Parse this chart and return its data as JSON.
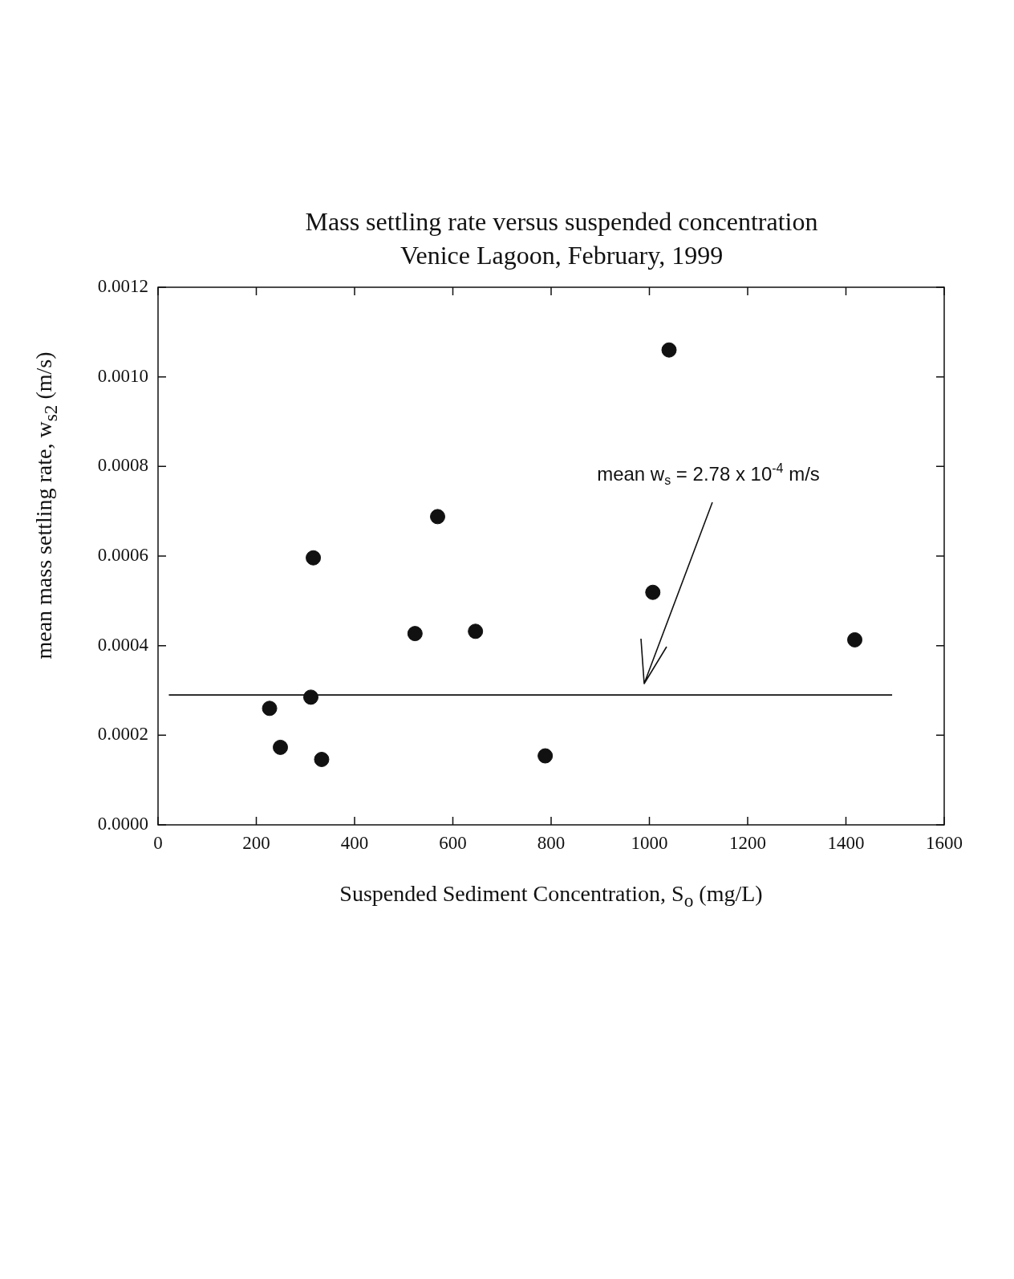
{
  "chart_data": {
    "type": "scatter",
    "title": "Mass settling rate versus suspended concentration",
    "subtitle": "Venice Lagoon, February, 1999",
    "xlabel": "Suspended Sediment Concentration, S$_{o}$ (mg/L)",
    "ylabel": "mean mass settling rate, w$_{s2}$ (m/s)",
    "xlim": [
      0,
      1600
    ],
    "xticks": [
      0,
      200,
      400,
      600,
      800,
      1000,
      1200,
      1400,
      1600
    ],
    "ylim": [
      0,
      0.0012
    ],
    "yticks": [
      {
        "value": 0,
        "label": "0.0000"
      },
      0.0002,
      0.0004,
      0.0006,
      0.0008,
      {
        "value": 0.001,
        "label": "0.0010"
      },
      0.0012
    ],
    "grid": false,
    "legend": false,
    "marker": "circle",
    "series": [
      {
        "type": "scatter",
        "color": "#111111",
        "x": [
          227,
          249,
          311,
          316,
          333,
          523,
          569,
          646,
          788,
          1007,
          1040,
          1418
        ],
        "values": [
          0.00026,
          0.000173,
          0.000285,
          0.000596,
          0.000146,
          0.000427,
          0.000688,
          0.000432,
          0.000154,
          0.000519,
          0.00106,
          0.000413
        ]
      },
      {
        "type": "line",
        "color": "#111111",
        "marker": "none",
        "x": [
          22,
          1494
        ],
        "values": [
          0.00029,
          0.00029
        ]
      }
    ],
    "annotations": [
      "mean w$_{s}$ = 2.78 x 10$^{-4}$ m/s"
    ]
  }
}
